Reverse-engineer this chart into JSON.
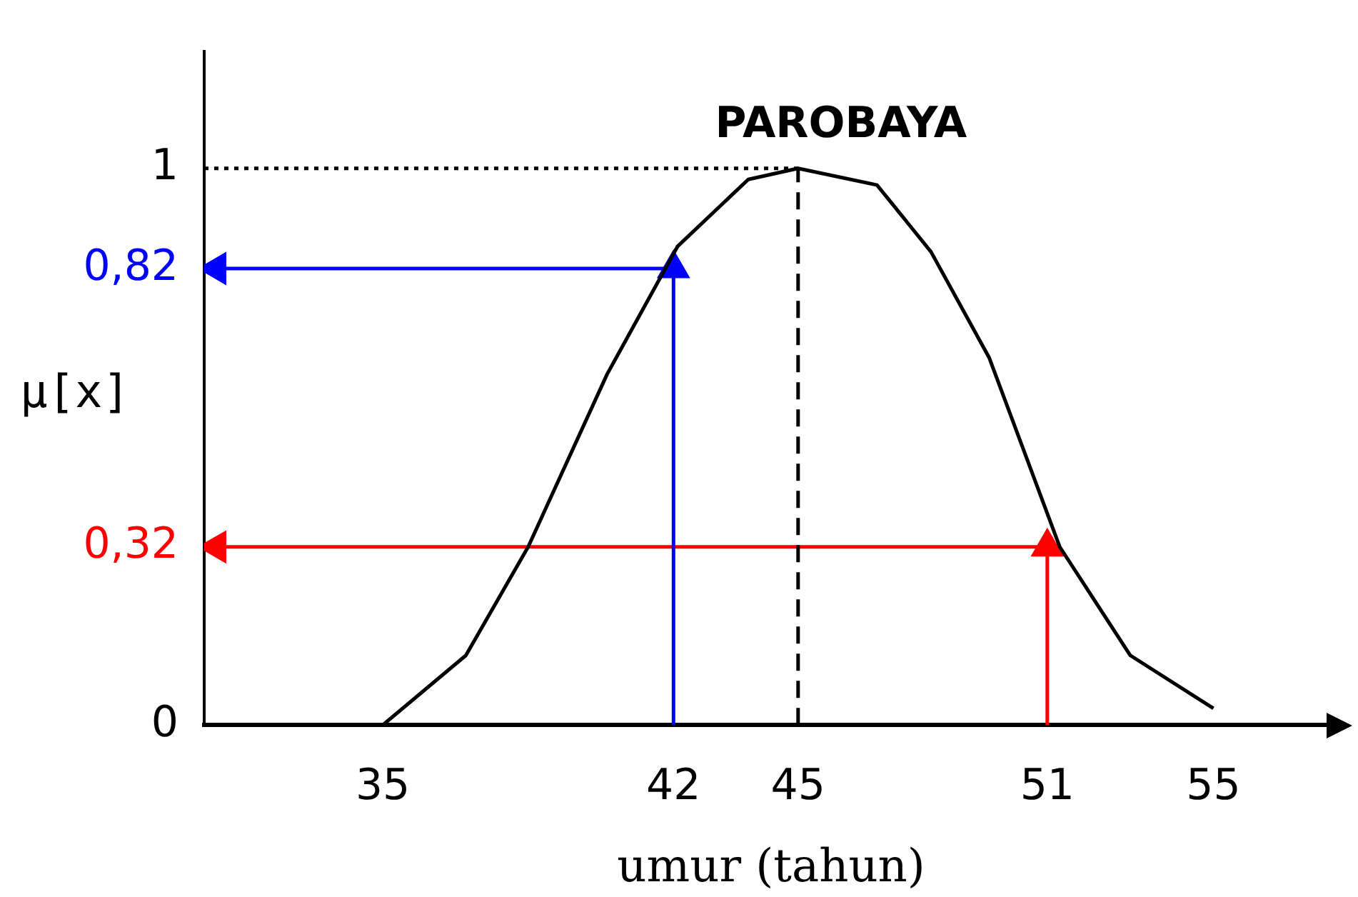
{
  "chart_data": {
    "type": "line",
    "xlabel": "umur (tahun)",
    "ylabel": "µ[x]",
    "xlim": [
      30.7,
      58
    ],
    "ylim": [
      0,
      1.21
    ],
    "xticks": [
      35,
      42,
      45,
      51,
      55
    ],
    "yticks": [
      0,
      {
        "value": 0.32,
        "label": "0,32"
      },
      {
        "value": 0.82,
        "label": "0,82"
      },
      1
    ],
    "grid": false,
    "legend": false,
    "marker": "none",
    "annotations": [
      "PAROBAYA"
    ],
    "series": [
      {
        "color": "#000000",
        "x": [
          35,
          37,
          38.5,
          40.4,
          42.1,
          43.8,
          45,
          46.9,
          48.2,
          49.6,
          51.3,
          53,
          55
        ],
        "values": [
          0,
          0.125,
          0.32,
          0.63,
          0.86,
          0.98,
          1,
          0.97,
          0.85,
          0.66,
          0.32,
          0.125,
          0.03
        ]
      },
      {
        "color": "#000000",
        "line_style": "dashed",
        "x": [
          45,
          45
        ],
        "values": [
          0,
          1
        ]
      },
      {
        "color": "#000000",
        "line_style": "dotted",
        "x": [
          30.7,
          45
        ],
        "values": [
          1,
          1
        ]
      },
      {
        "color": "#0000ff",
        "marker": "triangle",
        "x": [
          42,
          42,
          31
        ],
        "values": [
          0,
          0.82,
          0.82
        ]
      },
      {
        "color": "#ff0000",
        "marker": "triangle",
        "x": [
          51,
          51,
          31
        ],
        "values": [
          0,
          0.32,
          0.32
        ]
      }
    ]
  }
}
